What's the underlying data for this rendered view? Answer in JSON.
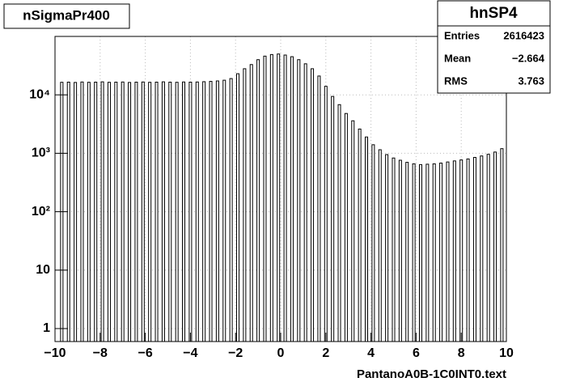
{
  "chart_data": {
    "type": "bar",
    "title": "nSigmaPr400",
    "x_label": "PantanoA0B-1C0INT0.text",
    "x": [
      -9.7,
      -9.4,
      -9.1,
      -8.8,
      -8.5,
      -8.2,
      -7.9,
      -7.6,
      -7.3,
      -7.0,
      -6.7,
      -6.4,
      -6.1,
      -5.8,
      -5.5,
      -5.2,
      -4.9,
      -4.6,
      -4.3,
      -4.0,
      -3.7,
      -3.4,
      -3.1,
      -2.8,
      -2.5,
      -2.2,
      -1.9,
      -1.6,
      -1.3,
      -1.0,
      -0.7,
      -0.4,
      -0.1,
      0.2,
      0.5,
      0.8,
      1.1,
      1.4,
      1.7,
      2.0,
      2.3,
      2.6,
      2.9,
      3.2,
      3.5,
      3.8,
      4.1,
      4.4,
      4.7,
      5.0,
      5.3,
      5.6,
      5.9,
      6.2,
      6.5,
      6.8,
      7.1,
      7.4,
      7.7,
      8.0,
      8.3,
      8.6,
      8.9,
      9.2,
      9.5,
      9.8
    ],
    "values": [
      16400,
      16500,
      16300,
      16600,
      16400,
      16500,
      16700,
      16400,
      16500,
      16600,
      16300,
      16500,
      16600,
      16400,
      16500,
      16700,
      16500,
      16400,
      16600,
      16500,
      16600,
      16800,
      17000,
      17300,
      17800,
      19000,
      23000,
      28000,
      33000,
      40000,
      46000,
      49000,
      50000,
      48000,
      45000,
      40000,
      34000,
      28000,
      21000,
      14000,
      9400,
      6800,
      4800,
      3600,
      2600,
      1900,
      1400,
      1150,
      950,
      830,
      760,
      700,
      660,
      640,
      650,
      660,
      680,
      710,
      740,
      770,
      800,
      850,
      900,
      960,
      1050,
      1200
    ],
    "color": "#000000",
    "xlim": [
      -10,
      10
    ],
    "xticks": [
      {
        "value": -10,
        "label": "−10"
      },
      {
        "value": -8,
        "label": "−8"
      },
      {
        "value": -6,
        "label": "−6"
      },
      {
        "value": -4,
        "label": "−4"
      },
      {
        "value": -2,
        "label": "−2"
      },
      0,
      2,
      4,
      6,
      8,
      10
    ],
    "ylim": [
      0.6,
      100000
    ],
    "yticks": [
      1,
      10,
      {
        "value": 100,
        "label": "10²"
      },
      {
        "value": 1000,
        "label": "10³"
      },
      {
        "value": 10000,
        "label": "10⁴"
      }
    ],
    "log_y": true,
    "grid": true,
    "stats": {
      "title": "hnSP4",
      "entries_label": "Entries",
      "entries": 2616423,
      "mean_label": "Mean",
      "mean": {
        "value": -2.664,
        "label": "−2.664"
      },
      "rms_label": "RMS",
      "rms": 3.763
    }
  }
}
